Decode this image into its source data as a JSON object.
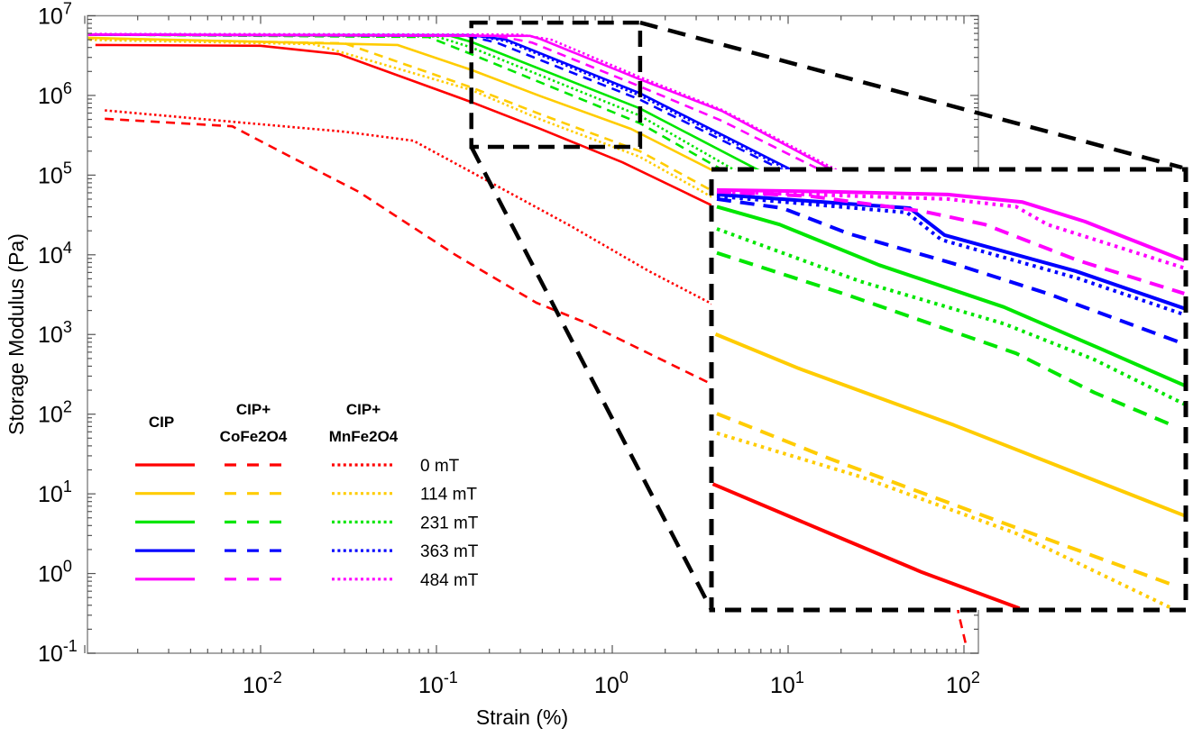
{
  "chart_data": {
    "type": "line",
    "xlabel": "Strain (%)",
    "ylabel": "Storage Modulus (Pa)",
    "xscale": "log",
    "yscale": "log",
    "xlim": [
      0.001,
      120
    ],
    "ylim": [
      0.1,
      10000000
    ],
    "xticks": [
      0.01,
      0.1,
      1,
      10,
      100
    ],
    "yticks": [
      0.1,
      1,
      10,
      100,
      1000,
      10000,
      100000,
      1000000,
      10000000
    ],
    "grid": false,
    "legend": {
      "placement": "lower-left",
      "headers": [
        "CIP",
        "CIP+",
        "CoFe2O4",
        "CIP+",
        "MnFe2O4"
      ],
      "fields": [
        "0 mT",
        "114 mT",
        "231 mT",
        "363 mT",
        "484 mT"
      ]
    },
    "colors": {
      "0 mT": "#ff0000",
      "114 mT": "#ffcc00",
      "231 mT": "#00e600",
      "363 mT": "#0000ff",
      "484 mT": "#ff00ff"
    },
    "line_styles": {
      "CIP": "solid",
      "CIP+CoFe2O4": "dashed",
      "CIP+MnFe2O4": "dotted"
    },
    "series": [
      {
        "material": "CIP",
        "field": "0 mT",
        "points": [
          [
            0.00115,
            4300000.0
          ],
          [
            0.01,
            4200000.0
          ],
          [
            0.028,
            3300000.0
          ],
          [
            0.157,
            830000.0
          ],
          [
            0.39,
            380000.0
          ],
          [
            1.14,
            145000.0
          ],
          [
            3.58,
            43000.0
          ],
          [
            100,
            1300.0
          ]
        ]
      },
      {
        "material": "CIP+CoFe2O4",
        "field": "0 mT",
        "points": [
          [
            0.0013,
            510000.0
          ],
          [
            0.0069,
            410000.0
          ],
          [
            0.0145,
            174000.0
          ],
          [
            0.036,
            62000.0
          ],
          [
            0.128,
            10000.0
          ],
          [
            0.37,
            2500.0
          ],
          [
            0.71,
            1400.0
          ],
          [
            3.58,
            245
          ],
          [
            80,
            4
          ],
          [
            93,
            0.32
          ],
          [
            102,
            0.135
          ]
        ]
      },
      {
        "material": "CIP+MnFe2O4",
        "field": "0 mT",
        "points": [
          [
            0.0013,
            650000.0
          ],
          [
            0.03,
            350000.0
          ],
          [
            0.074,
            270000.0
          ],
          [
            0.157,
            110000.0
          ],
          [
            0.58,
            23000.0
          ],
          [
            1.6,
            6300.0
          ],
          [
            3.58,
            2500.0
          ],
          [
            10,
            800
          ]
        ]
      },
      {
        "material": "CIP",
        "field": "114 mT",
        "points": [
          [
            0.001,
            5300000.0
          ],
          [
            0.06,
            4300000.0
          ],
          [
            0.157,
            2100000.0
          ],
          [
            0.39,
            980000.0
          ],
          [
            1.28,
            380000.0
          ],
          [
            3.58,
            120000.0
          ],
          [
            100,
            5000.0
          ]
        ]
      },
      {
        "material": "CIP+CoFe2O4",
        "field": "114 mT",
        "points": [
          [
            0.001,
            5200000.0
          ],
          [
            0.03,
            4500000.0
          ],
          [
            0.158,
            1260000.0
          ],
          [
            0.39,
            580000.0
          ],
          [
            1.43,
            200000.0
          ],
          [
            3.58,
            66000.0
          ],
          [
            100,
            2000.0
          ]
        ]
      },
      {
        "material": "CIP+MnFe2O4",
        "field": "114 mT",
        "points": [
          [
            0.001,
            5000000.0
          ],
          [
            0.02,
            4400000.0
          ],
          [
            0.158,
            1170000.0
          ],
          [
            0.39,
            500000.0
          ],
          [
            1.43,
            170000.0
          ],
          [
            3.58,
            55000.0
          ],
          [
            100,
            1500.0
          ]
        ]
      },
      {
        "material": "CIP",
        "field": "231 mT",
        "points": [
          [
            0.001,
            5800000.0
          ],
          [
            0.12,
            5600000.0
          ],
          [
            0.158,
            4700000.0
          ],
          [
            1.43,
            690000.0
          ],
          [
            6.7,
            117000.0
          ],
          [
            100,
            10000.0
          ]
        ]
      },
      {
        "material": "CIP+CoFe2O4",
        "field": "231 mT",
        "points": [
          [
            0.001,
            5800000.0
          ],
          [
            0.09,
            5400000.0
          ],
          [
            0.158,
            3300000.0
          ],
          [
            1.43,
            450000.0
          ],
          [
            4.2,
            117000.0
          ],
          [
            100,
            3000.0
          ]
        ]
      },
      {
        "material": "CIP+MnFe2O4",
        "field": "231 mT",
        "points": [
          [
            0.001,
            5800000.0
          ],
          [
            0.1,
            5500000.0
          ],
          [
            0.158,
            4000000.0
          ],
          [
            1.43,
            560000.0
          ],
          [
            4.9,
            117000.0
          ],
          [
            100,
            5000.0
          ]
        ]
      },
      {
        "material": "CIP",
        "field": "363 mT",
        "points": [
          [
            0.001,
            5800000.0
          ],
          [
            0.16,
            5700000.0
          ],
          [
            0.25,
            5000000.0
          ],
          [
            1.43,
            1070000.0
          ],
          [
            11,
            110000.0
          ],
          [
            100,
            12000.0
          ]
        ]
      },
      {
        "material": "CIP+CoFe2O4",
        "field": "363 mT",
        "points": [
          [
            0.001,
            5800000.0
          ],
          [
            0.15,
            5600000.0
          ],
          [
            0.22,
            4600000.0
          ],
          [
            1.43,
            890000.0
          ],
          [
            9.2,
            117000.0
          ],
          [
            100,
            8000.0
          ]
        ]
      },
      {
        "material": "CIP+MnFe2O4",
        "field": "363 mT",
        "points": [
          [
            0.001,
            5800000.0
          ],
          [
            0.17,
            5600000.0
          ],
          [
            0.25,
            4800000.0
          ],
          [
            1.43,
            1000000.0
          ],
          [
            11,
            105000.0
          ],
          [
            100,
            10000.0
          ]
        ]
      },
      {
        "material": "CIP",
        "field": "484 mT",
        "points": [
          [
            0.001,
            5800000.0
          ],
          [
            0.34,
            5600000.0
          ],
          [
            0.39,
            5100000.0
          ],
          [
            1.43,
            1600000.0
          ],
          [
            4.2,
            640000.0
          ],
          [
            18.7,
            110000.0
          ],
          [
            100,
            15000.0
          ]
        ]
      },
      {
        "material": "CIP+CoFe2O4",
        "field": "484 mT",
        "points": [
          [
            0.001,
            5800000.0
          ],
          [
            0.22,
            5600000.0
          ],
          [
            0.35,
            4600000.0
          ],
          [
            1.43,
            1300000.0
          ],
          [
            4.2,
            480000.0
          ],
          [
            16,
            110000.0
          ],
          [
            100,
            12000.0
          ]
        ]
      },
      {
        "material": "CIP+MnFe2O4",
        "field": "484 mT",
        "points": [
          [
            0.001,
            5900000.0
          ],
          [
            0.3,
            5800000.0
          ],
          [
            0.45,
            5000000.0
          ],
          [
            1.43,
            1700000.0
          ],
          [
            4.2,
            660000.0
          ],
          [
            19,
            115000.0
          ],
          [
            100,
            15000.0
          ]
        ]
      }
    ],
    "inset": {
      "zoom_region_x": [
        0.158,
        1.44
      ],
      "zoom_region_y": [
        226000,
        8200000
      ],
      "series": [
        {
          "material": "CIP",
          "field": "0 mT",
          "points": [
            [
              0.159,
              631000.0
            ],
            [
              0.274,
              422000.0
            ],
            [
              0.422,
              307000.0
            ],
            [
              0.664,
              229000.0
            ]
          ]
        },
        {
          "material": "CIP",
          "field": "114 mT",
          "points": [
            [
              0.161,
              2140000.0
            ],
            [
              0.237,
              1620000.0
            ],
            [
              0.489,
              1020000.0
            ],
            [
              1.43,
              488000.0
            ]
          ]
        },
        {
          "material": "CIP+CoFe2O4",
          "field": "114 mT",
          "points": [
            [
              0.162,
              1120000.0
            ],
            [
              0.274,
              776000.0
            ],
            [
              0.653,
              442000.0
            ],
            [
              1.35,
              278000.0
            ]
          ]
        },
        {
          "material": "CIP+MnFe2O4",
          "field": "114 mT",
          "points": [
            [
              0.162,
              955000.0
            ],
            [
              0.316,
              670000.0
            ],
            [
              0.653,
              422000.0
            ],
            [
              1.35,
              229000.0
            ]
          ]
        },
        {
          "material": "CIP",
          "field": "231 mT",
          "points": [
            [
              0.162,
              6050000.0
            ],
            [
              0.217,
              5230000.0
            ],
            [
              0.345,
              3760000.0
            ],
            [
              0.617,
              2670000.0
            ],
            [
              0.968,
              1900000.0
            ],
            [
              1.43,
              1410000.0
            ]
          ]
        },
        {
          "material": "CIP+CoFe2O4",
          "field": "231 mT",
          "points": [
            [
              0.162,
              4150000.0
            ],
            [
              0.299,
              2940000.0
            ],
            [
              0.653,
              1830000.0
            ],
            [
              0.94,
              1330000.0
            ],
            [
              1.35,
              1020000.0
            ]
          ]
        },
        {
          "material": "CIP+MnFe2O4",
          "field": "231 mT",
          "points": [
            [
              0.162,
              5050000.0
            ],
            [
              0.316,
              3290000.0
            ],
            [
              0.617,
              2330000.0
            ],
            [
              0.94,
              1740000.0
            ],
            [
              1.43,
              1210000.0
            ]
          ]
        },
        {
          "material": "CIP",
          "field": "363 mT",
          "points": [
            [
              0.162,
              6680000.0
            ],
            [
              0.398,
              5980000.0
            ],
            [
              0.468,
              4800000.0
            ],
            [
              0.861,
              3580000.0
            ],
            [
              1.43,
              2640000.0
            ]
          ]
        },
        {
          "material": "CIP+CoFe2O4",
          "field": "363 mT",
          "points": [
            [
              0.162,
              6440000.0
            ],
            [
              0.22,
              5980000.0
            ],
            [
              0.299,
              4860000.0
            ],
            [
              0.489,
              3800000.0
            ],
            [
              0.756,
              2980000.0
            ],
            [
              1.39,
              2010000.0
            ]
          ]
        },
        {
          "material": "CIP+MnFe2O4",
          "field": "363 mT",
          "points": [
            [
              0.162,
              6590000.0
            ],
            [
              0.393,
              5770000.0
            ],
            [
              0.461,
              4620000.0
            ],
            [
              0.873,
              3370000.0
            ],
            [
              1.43,
              2510000.0
            ]
          ]
        },
        {
          "material": "CIP",
          "field": "484 mT",
          "points": [
            [
              0.162,
              6930000.0
            ],
            [
              0.274,
              6840000.0
            ],
            [
              0.475,
              6680000.0
            ],
            [
              0.673,
              6280000.0
            ],
            [
              0.9,
              5360000.0
            ],
            [
              1.43,
              3900000.0
            ]
          ]
        },
        {
          "material": "CIP+CoFe2O4",
          "field": "484 mT",
          "points": [
            [
              0.162,
              6840000.0
            ],
            [
              0.251,
              6590000.0
            ],
            [
              0.422,
              5830000.0
            ],
            [
              0.565,
              5230000.0
            ],
            [
              0.873,
              3900000.0
            ],
            [
              1.43,
              2980000.0
            ]
          ]
        },
        {
          "material": "CIP+MnFe2O4",
          "field": "484 mT",
          "points": [
            [
              0.162,
              6840000.0
            ],
            [
              0.475,
              6440000.0
            ],
            [
              0.653,
              6050000.0
            ],
            [
              0.756,
              5230000.0
            ],
            [
              1.43,
              3670000.0
            ]
          ]
        }
      ]
    }
  }
}
